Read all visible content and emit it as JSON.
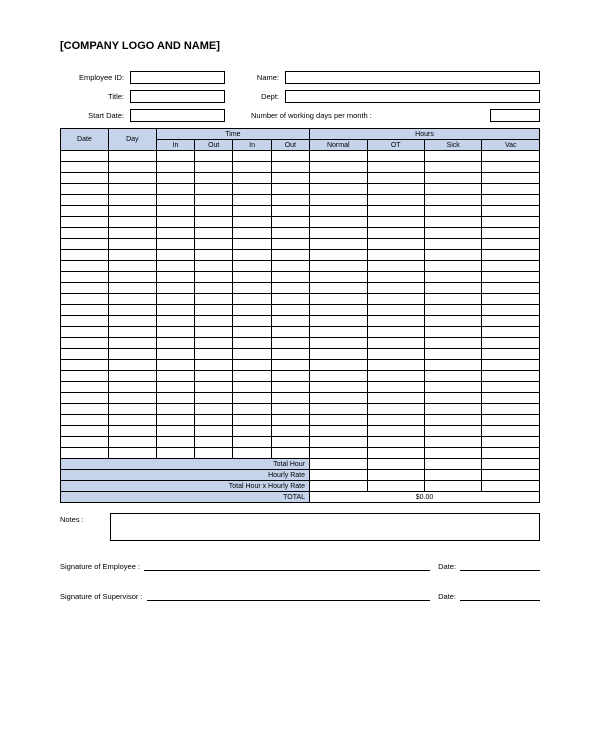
{
  "title": "[COMPANY LOGO AND NAME]",
  "form": {
    "employee_id_label": "Employee ID:",
    "employee_id_value": "",
    "name_label": "Name:",
    "name_value": "",
    "title_label": "Title:",
    "title_value": "",
    "dept_label": "Dept:",
    "dept_value": "",
    "start_date_label": "Start Date:",
    "start_date_value": "",
    "working_days_label": "Number of working days per month :",
    "working_days_value": ""
  },
  "table": {
    "header_bg": "#c5d4ea",
    "border_color": "#000000",
    "row_count": 28,
    "columns": {
      "date": "Date",
      "day": "Day",
      "time_group": "Time",
      "time_in1": "In",
      "time_out1": "Out",
      "time_in2": "In",
      "time_out2": "Out",
      "hours_group": "Hours",
      "hours_normal": "Normal",
      "hours_ot": "OT",
      "hours_sick": "Sick",
      "hours_vac": "Vac"
    },
    "summary": {
      "total_hour_label": "Total Hour",
      "hourly_rate_label": "Hourly Rate",
      "total_hour_x_rate_label": "Total Hour x Hourly Rate",
      "total_label": "TOTAL",
      "total_value": "$0.00"
    }
  },
  "notes_label": "Notes :",
  "signatures": {
    "employee_label": "Signature of Employee :",
    "supervisor_label": "Signature of Supervisor :",
    "date_label": "Date:"
  }
}
